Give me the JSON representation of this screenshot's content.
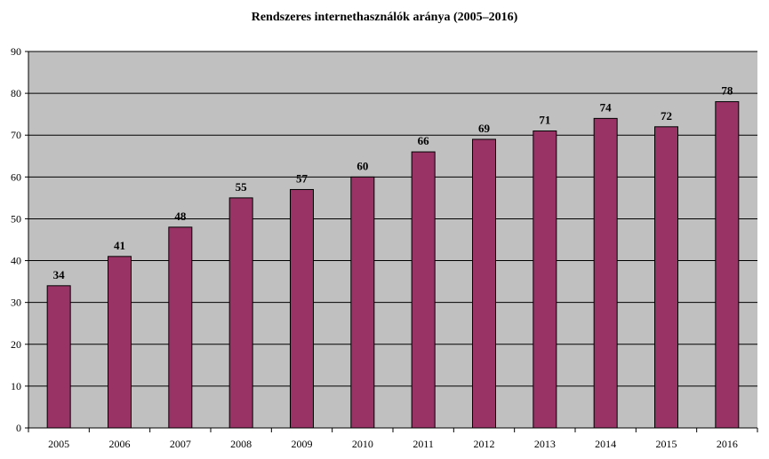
{
  "chart_data": {
    "type": "bar",
    "title": "Rendszeres internethasználók aránya (2005–2016)",
    "xlabel": "",
    "ylabel": "",
    "categories": [
      "2005",
      "2006",
      "2007",
      "2008",
      "2009",
      "2010",
      "2011",
      "2012",
      "2013",
      "2014",
      "2015",
      "2016"
    ],
    "values": [
      34,
      41,
      48,
      55,
      57,
      60,
      66,
      69,
      71,
      74,
      72,
      78
    ],
    "ylim": [
      0,
      90
    ],
    "yticks": [
      0,
      10,
      20,
      30,
      40,
      50,
      60,
      70,
      80,
      90
    ],
    "grid": true,
    "legend": "none",
    "data_labels": true,
    "colors": {
      "bar": "#993366",
      "plot_background": "#C0C0C0",
      "gridline": "#000000",
      "text": "#000000"
    }
  }
}
